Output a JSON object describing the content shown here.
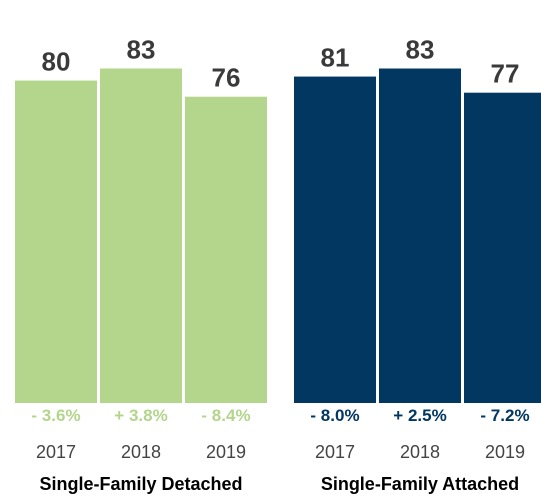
{
  "chart_data": {
    "type": "bar",
    "ylim": [
      0,
      100
    ],
    "groups": [
      {
        "name": "Single-Family Detached",
        "color": "#b3d58c",
        "categories": [
          "2017",
          "2018",
          "2019"
        ],
        "values": [
          80,
          83,
          76
        ],
        "changes": [
          "- 3.6%",
          "+ 3.8%",
          "- 8.4%"
        ]
      },
      {
        "name": "Single-Family Attached",
        "color": "#023761",
        "categories": [
          "2017",
          "2018",
          "2019"
        ],
        "values": [
          81,
          83,
          77
        ],
        "changes": [
          "- 8.0%",
          "+ 2.5%",
          "- 7.2%"
        ]
      }
    ],
    "value_label_color": "#3a3a3a",
    "tick_label_color": "#444444",
    "group_label_color": "#000000",
    "grid": false
  }
}
